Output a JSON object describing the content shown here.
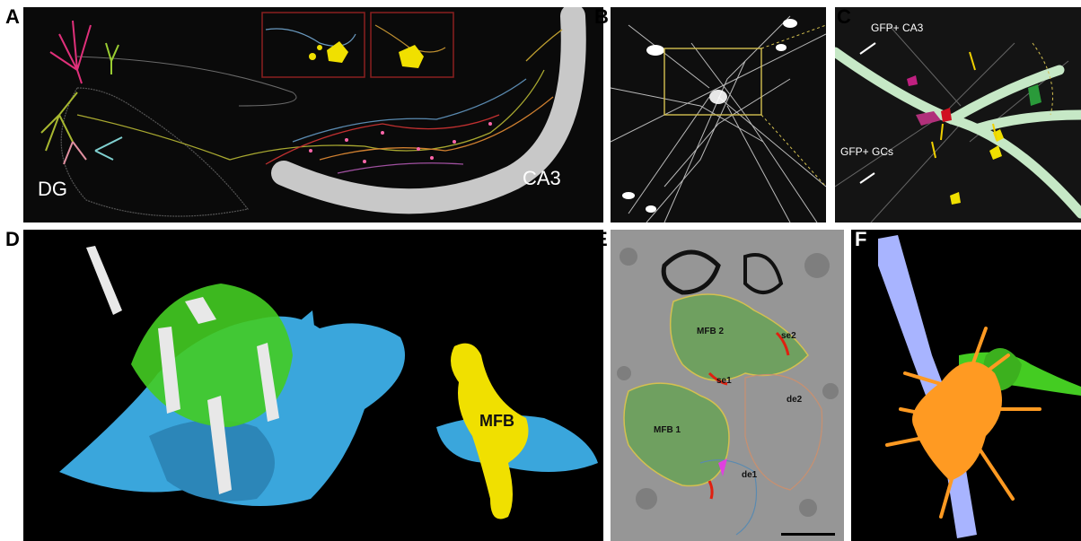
{
  "panels": {
    "a": {
      "label": "A",
      "region_left": "DG",
      "region_right": "CA3"
    },
    "b": {
      "label": "B"
    },
    "c": {
      "label": "C",
      "arrow_top": "GFP+ CA3",
      "arrow_bottom": "GFP+ GCs"
    },
    "d": {
      "label": "D",
      "bouton": "MFB"
    },
    "e": {
      "label": "E",
      "mfb1": "MFB 1",
      "mfb2": "MFB 2",
      "se1": "se1",
      "se2": "se2",
      "de1": "de1",
      "de2": "de2"
    },
    "f": {
      "label": "F"
    }
  },
  "colors": {
    "background": "#000000",
    "ca3_band": "#c8c8c8",
    "bouton_yellow": "#f0e000",
    "frame_red": "#8a2020",
    "dendrite_blue": "#3aa6dc",
    "vesicle_green": "#44cc22",
    "axon_lavender": "#a8b4ff",
    "cell_orange": "#ff9a22",
    "light_green": "#c6e8c6",
    "outline_yellow": "#d4c050"
  }
}
